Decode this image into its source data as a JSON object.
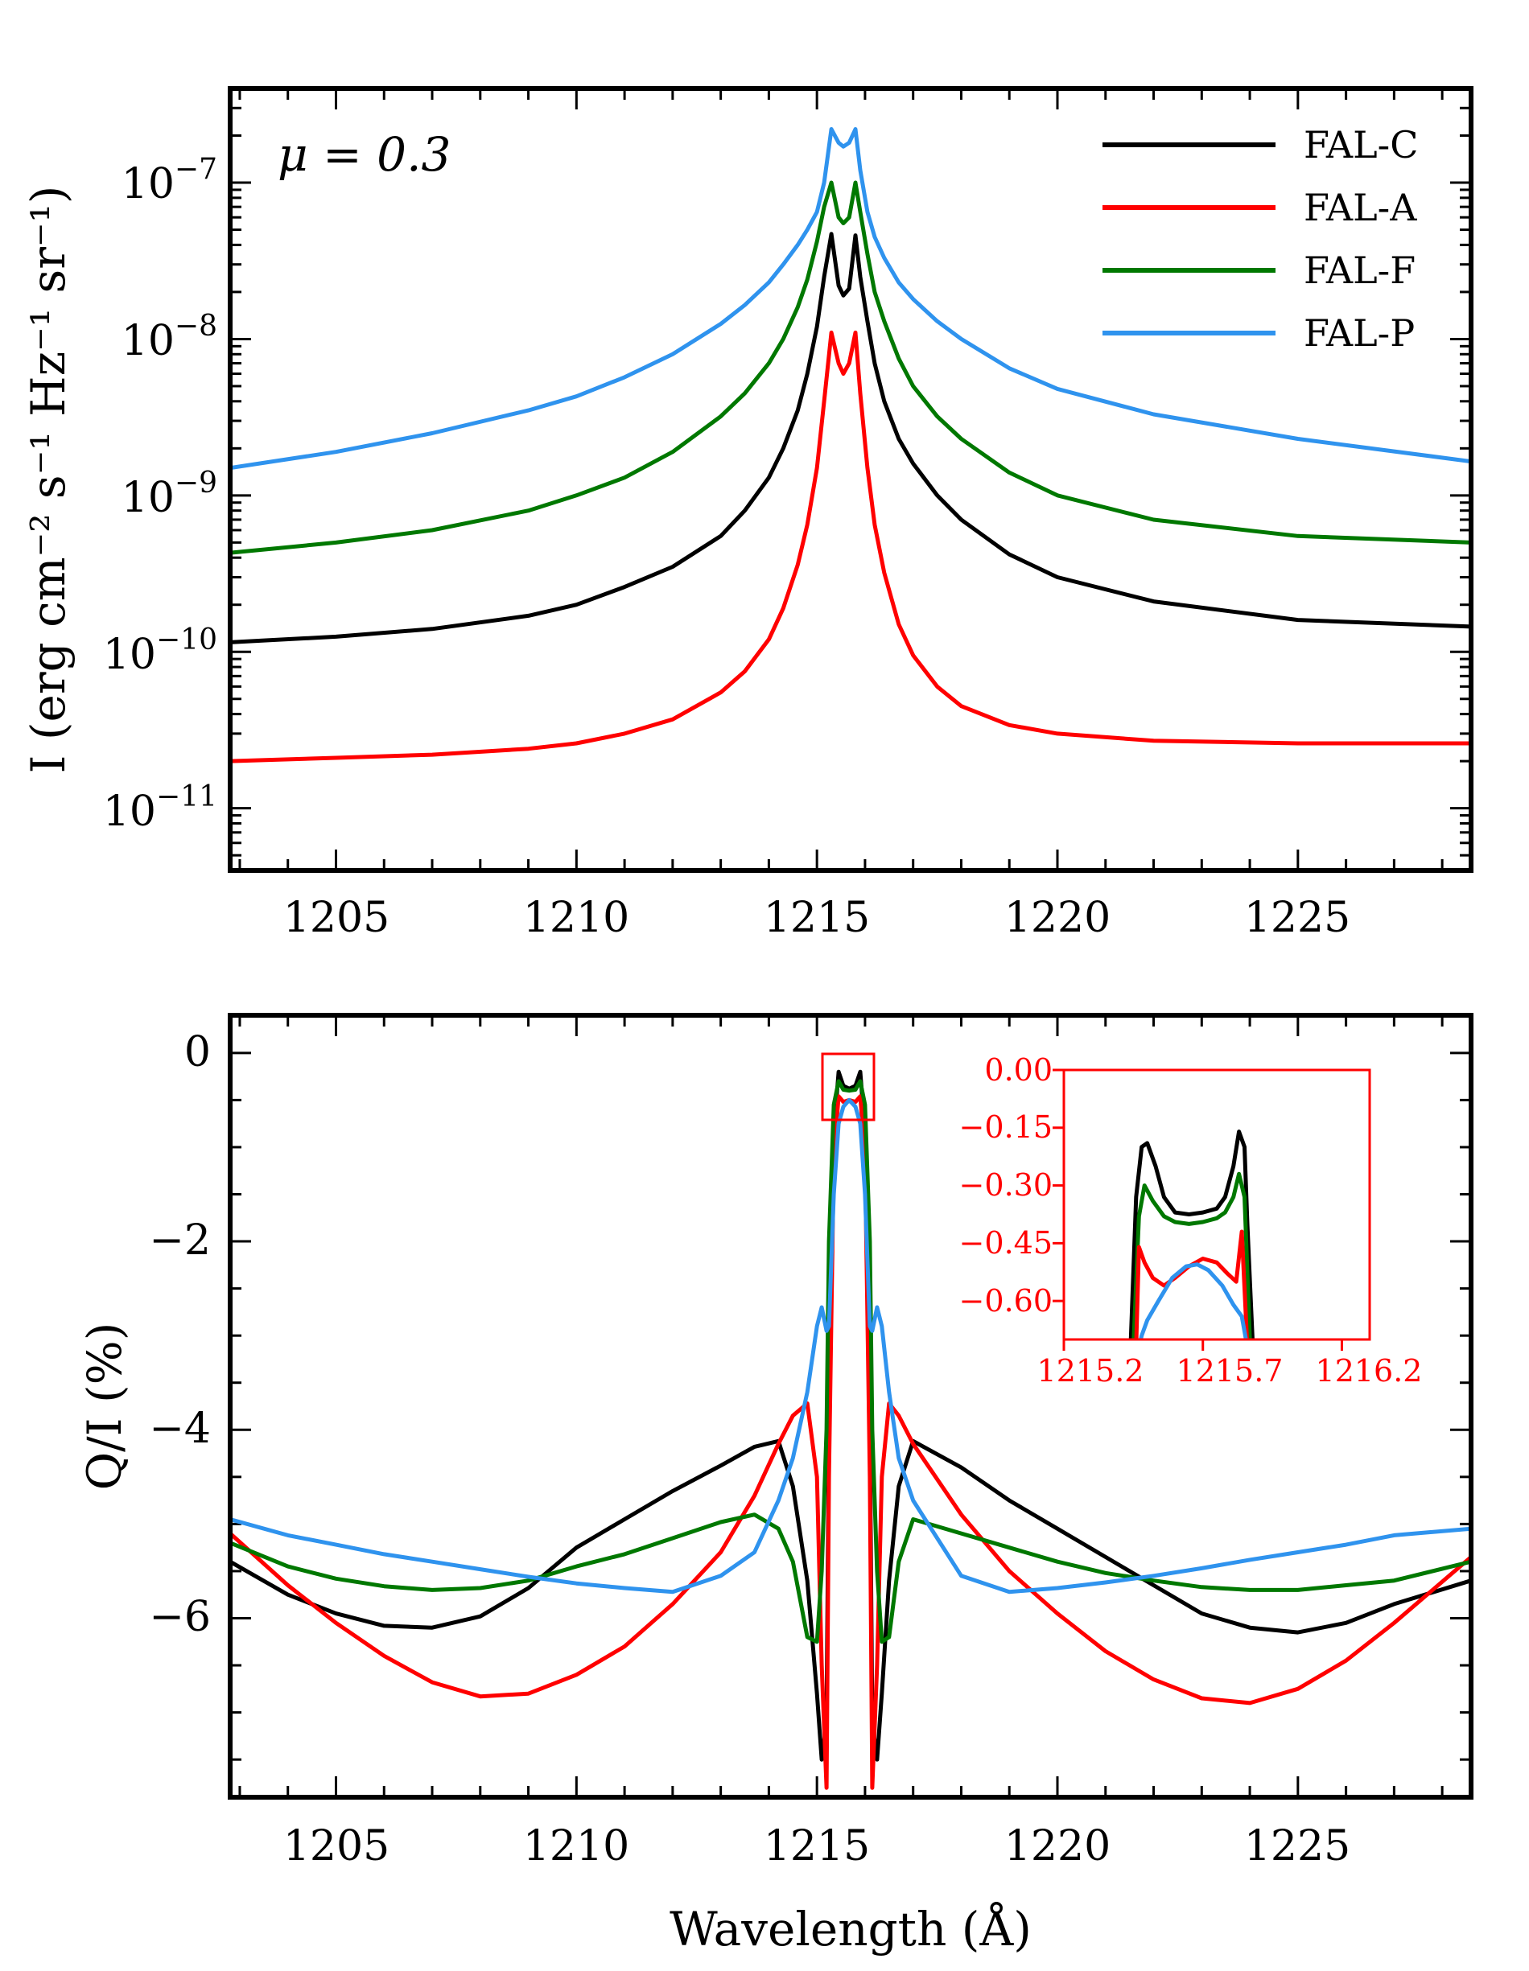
{
  "chart_data": [
    {
      "type": "line",
      "id": "intensity",
      "yscale": "log",
      "annotation": "μ = 0.3",
      "ylabel": "I (erg cm⁻² s⁻¹ Hz⁻¹ sr⁻¹)",
      "xlabel": "",
      "xlim": [
        1202.8,
        1228.6
      ],
      "ylim": [
        4e-12,
        4e-07
      ],
      "xticks": [
        1205,
        1210,
        1215,
        1220,
        1225
      ],
      "xtick_labels": [
        "1205",
        "1210",
        "1215",
        "1220",
        "1225"
      ],
      "ytick_labels": [
        {
          "base": "10",
          "exp": "−7"
        },
        {
          "base": "10",
          "exp": "−8"
        },
        {
          "base": "10",
          "exp": "−9"
        },
        {
          "base": "10",
          "exp": "−10"
        },
        {
          "base": "10",
          "exp": "−11"
        }
      ],
      "legend": {
        "position": "top-right",
        "entries": [
          "FAL-C",
          "FAL-A",
          "FAL-F",
          "FAL-P"
        ]
      },
      "series": [
        {
          "name": "FAL-C",
          "color": "#000000",
          "x": [
            1202.8,
            1205,
            1207,
            1209,
            1210,
            1211,
            1212,
            1213,
            1213.5,
            1214,
            1214.3,
            1214.6,
            1214.8,
            1215.0,
            1215.15,
            1215.3,
            1215.45,
            1215.55,
            1215.67,
            1215.8,
            1215.9,
            1216.05,
            1216.2,
            1216.4,
            1216.7,
            1217,
            1217.5,
            1218,
            1219,
            1220,
            1222,
            1225,
            1228.6
          ],
          "y": [
            1.15e-10,
            1.25e-10,
            1.4e-10,
            1.7e-10,
            2e-10,
            2.6e-10,
            3.5e-10,
            5.5e-10,
            8e-10,
            1.3e-09,
            2e-09,
            3.5e-09,
            6e-09,
            1.2e-08,
            2.5e-08,
            4.7e-08,
            2.2e-08,
            1.9e-08,
            2.1e-08,
            4.6e-08,
            2.5e-08,
            1.3e-08,
            7e-09,
            4e-09,
            2.3e-09,
            1.6e-09,
            1e-09,
            7e-10,
            4.2e-10,
            3e-10,
            2.1e-10,
            1.6e-10,
            1.45e-10
          ]
        },
        {
          "name": "FAL-A",
          "color": "#ff0000",
          "x": [
            1202.8,
            1205,
            1207,
            1209,
            1210,
            1211,
            1212,
            1213,
            1213.5,
            1214,
            1214.3,
            1214.6,
            1214.8,
            1215.0,
            1215.15,
            1215.3,
            1215.45,
            1215.55,
            1215.67,
            1215.8,
            1215.9,
            1216.05,
            1216.2,
            1216.4,
            1216.7,
            1217,
            1217.5,
            1218,
            1219,
            1220,
            1222,
            1225,
            1228.6
          ],
          "y": [
            2e-11,
            2.1e-11,
            2.2e-11,
            2.4e-11,
            2.6e-11,
            3e-11,
            3.7e-11,
            5.5e-11,
            7.5e-11,
            1.2e-10,
            1.9e-10,
            3.6e-10,
            6.5e-10,
            1.5e-09,
            4e-09,
            1.1e-08,
            7e-09,
            6e-09,
            7e-09,
            1.1e-08,
            4.5e-09,
            1.5e-09,
            6.5e-10,
            3.2e-10,
            1.5e-10,
            9.5e-11,
            6e-11,
            4.5e-11,
            3.4e-11,
            3e-11,
            2.7e-11,
            2.6e-11,
            2.6e-11
          ]
        },
        {
          "name": "FAL-F",
          "color": "#007800",
          "x": [
            1202.8,
            1205,
            1207,
            1209,
            1210,
            1211,
            1212,
            1213,
            1213.5,
            1214,
            1214.3,
            1214.6,
            1214.8,
            1215.0,
            1215.15,
            1215.3,
            1215.45,
            1215.55,
            1215.67,
            1215.8,
            1215.9,
            1216.05,
            1216.2,
            1216.4,
            1216.7,
            1217,
            1217.5,
            1218,
            1219,
            1220,
            1222,
            1225,
            1228.6
          ],
          "y": [
            4.3e-10,
            5e-10,
            6e-10,
            8e-10,
            1e-09,
            1.3e-09,
            1.9e-09,
            3.2e-09,
            4.5e-09,
            7e-09,
            1e-08,
            1.6e-08,
            2.4e-08,
            4.2e-08,
            7e-08,
            1e-07,
            6e-08,
            5.5e-08,
            6e-08,
            1e-07,
            6.5e-08,
            3.5e-08,
            2e-08,
            1.3e-08,
            7.5e-09,
            5e-09,
            3.2e-09,
            2.3e-09,
            1.4e-09,
            1e-09,
            7e-10,
            5.5e-10,
            5e-10
          ]
        },
        {
          "name": "FAL-P",
          "color": "#2f93ee",
          "x": [
            1202.8,
            1205,
            1207,
            1209,
            1210,
            1211,
            1212,
            1213,
            1213.5,
            1214,
            1214.3,
            1214.6,
            1214.8,
            1215.0,
            1215.15,
            1215.3,
            1215.45,
            1215.55,
            1215.67,
            1215.8,
            1215.9,
            1216.05,
            1216.2,
            1216.4,
            1216.7,
            1217,
            1217.5,
            1218,
            1219,
            1220,
            1222,
            1225,
            1228.6
          ],
          "y": [
            1.5e-09,
            1.9e-09,
            2.5e-09,
            3.5e-09,
            4.3e-09,
            5.7e-09,
            8e-09,
            1.25e-08,
            1.65e-08,
            2.3e-08,
            3e-08,
            4e-08,
            5e-08,
            6.5e-08,
            1e-07,
            2.2e-07,
            1.8e-07,
            1.7e-07,
            1.8e-07,
            2.2e-07,
            1.2e-07,
            6.5e-08,
            4.5e-08,
            3.3e-08,
            2.3e-08,
            1.8e-08,
            1.3e-08,
            1e-08,
            6.5e-09,
            4.8e-09,
            3.3e-09,
            2.3e-09,
            1.65e-09
          ]
        }
      ]
    },
    {
      "type": "line",
      "id": "polarization",
      "yscale": "linear",
      "ylabel": "Q/I (%)",
      "xlabel": "Wavelength (Å)",
      "xlim": [
        1202.8,
        1228.6
      ],
      "ylim": [
        -7.9,
        0.4
      ],
      "xticks": [
        1205,
        1210,
        1215,
        1220,
        1225
      ],
      "xtick_labels": [
        "1205",
        "1210",
        "1215",
        "1220",
        "1225"
      ],
      "yticks": [
        0,
        -2,
        -4,
        -6
      ],
      "ytick_labels": [
        "0",
        "−2",
        "−4",
        "−6"
      ],
      "series": [
        {
          "name": "FAL-C",
          "color": "#000000",
          "x": [
            1202.8,
            1204,
            1205,
            1206,
            1207,
            1208,
            1209,
            1210,
            1211,
            1212,
            1213,
            1213.7,
            1214.2,
            1214.5,
            1214.8,
            1215.0,
            1215.1,
            1215.2,
            1215.25,
            1215.35,
            1215.45,
            1215.55,
            1215.67,
            1215.8,
            1215.9,
            1216.0,
            1216.1,
            1216.15,
            1216.25,
            1216.35,
            1216.5,
            1216.7,
            1217,
            1218,
            1219,
            1220,
            1221,
            1222,
            1223,
            1224,
            1225,
            1226,
            1227,
            1228.6
          ],
          "y": [
            -5.4,
            -5.75,
            -5.95,
            -6.08,
            -6.1,
            -5.98,
            -5.68,
            -5.25,
            -4.95,
            -4.65,
            -4.38,
            -4.18,
            -4.12,
            -4.6,
            -5.6,
            -6.8,
            -7.5,
            -7.1,
            -4.0,
            -0.85,
            -0.2,
            -0.35,
            -0.38,
            -0.35,
            -0.2,
            -0.85,
            -4.0,
            -7.1,
            -7.5,
            -6.8,
            -5.6,
            -4.6,
            -4.12,
            -4.4,
            -4.75,
            -5.05,
            -5.35,
            -5.65,
            -5.95,
            -6.1,
            -6.15,
            -6.05,
            -5.85,
            -5.6
          ]
        },
        {
          "name": "FAL-A",
          "color": "#ff0000",
          "x": [
            1202.8,
            1204,
            1205,
            1206,
            1207,
            1208,
            1209,
            1210,
            1211,
            1212,
            1213,
            1213.7,
            1214.2,
            1214.5,
            1214.8,
            1215.0,
            1215.1,
            1215.2,
            1215.25,
            1215.35,
            1215.45,
            1215.55,
            1215.67,
            1215.8,
            1215.9,
            1216.0,
            1216.1,
            1216.15,
            1216.25,
            1216.35,
            1216.5,
            1216.7,
            1217,
            1218,
            1219,
            1220,
            1221,
            1222,
            1223,
            1224,
            1225,
            1226,
            1227,
            1228.6
          ],
          "y": [
            -5.1,
            -5.65,
            -6.05,
            -6.4,
            -6.68,
            -6.83,
            -6.8,
            -6.6,
            -6.3,
            -5.85,
            -5.3,
            -4.7,
            -4.15,
            -3.85,
            -3.72,
            -4.5,
            -6.5,
            -7.8,
            -4.5,
            -1.1,
            -0.46,
            -0.52,
            -0.5,
            -0.52,
            -0.46,
            -1.1,
            -4.5,
            -7.8,
            -6.5,
            -4.5,
            -3.72,
            -3.85,
            -4.15,
            -4.9,
            -5.5,
            -5.95,
            -6.35,
            -6.65,
            -6.85,
            -6.9,
            -6.75,
            -6.45,
            -6.05,
            -5.35
          ]
        },
        {
          "name": "FAL-F",
          "color": "#007800",
          "x": [
            1202.8,
            1204,
            1205,
            1206,
            1207,
            1208,
            1209,
            1210,
            1211,
            1212,
            1213,
            1213.7,
            1214.2,
            1214.5,
            1214.8,
            1215.0,
            1215.1,
            1215.2,
            1215.25,
            1215.35,
            1215.45,
            1215.55,
            1215.67,
            1215.8,
            1215.9,
            1216.0,
            1216.1,
            1216.15,
            1216.25,
            1216.35,
            1216.5,
            1216.7,
            1217,
            1218,
            1219,
            1220,
            1221,
            1222,
            1223,
            1224,
            1225,
            1226,
            1227,
            1228.6
          ],
          "y": [
            -5.2,
            -5.45,
            -5.58,
            -5.66,
            -5.7,
            -5.68,
            -5.6,
            -5.45,
            -5.32,
            -5.15,
            -4.98,
            -4.9,
            -5.05,
            -5.4,
            -6.2,
            -6.25,
            -5.5,
            -4.0,
            -2.0,
            -0.55,
            -0.3,
            -0.39,
            -0.4,
            -0.39,
            -0.3,
            -0.55,
            -2.0,
            -4.0,
            -5.5,
            -6.25,
            -6.2,
            -5.4,
            -4.95,
            -5.1,
            -5.25,
            -5.4,
            -5.52,
            -5.6,
            -5.67,
            -5.7,
            -5.7,
            -5.65,
            -5.6,
            -5.4
          ]
        },
        {
          "name": "FAL-P",
          "color": "#2f93ee",
          "x": [
            1202.8,
            1204,
            1205,
            1206,
            1207,
            1208,
            1209,
            1210,
            1211,
            1212,
            1213,
            1213.7,
            1214.2,
            1214.5,
            1214.8,
            1215.0,
            1215.1,
            1215.2,
            1215.25,
            1215.35,
            1215.45,
            1215.55,
            1215.67,
            1215.8,
            1215.9,
            1216.0,
            1216.1,
            1216.15,
            1216.25,
            1216.35,
            1216.5,
            1216.7,
            1217,
            1218,
            1219,
            1220,
            1221,
            1222,
            1223,
            1224,
            1225,
            1226,
            1227,
            1228.6
          ],
          "y": [
            -4.95,
            -5.12,
            -5.22,
            -5.32,
            -5.4,
            -5.48,
            -5.56,
            -5.63,
            -5.68,
            -5.72,
            -5.55,
            -5.3,
            -4.75,
            -4.3,
            -3.6,
            -2.9,
            -2.7,
            -2.95,
            -2.9,
            -1.5,
            -0.75,
            -0.57,
            -0.5,
            -0.57,
            -0.75,
            -1.5,
            -2.9,
            -2.95,
            -2.7,
            -2.9,
            -3.6,
            -4.3,
            -4.75,
            -5.55,
            -5.72,
            -5.68,
            -5.62,
            -5.55,
            -5.47,
            -5.38,
            -5.3,
            -5.22,
            -5.12,
            -5.05
          ]
        }
      ]
    },
    {
      "type": "line",
      "id": "inset",
      "yscale": "linear",
      "xlim": [
        1215.2,
        1216.3
      ],
      "ylim": [
        -0.7,
        0.0
      ],
      "xticks": [
        1215.2,
        1215.7,
        1216.2
      ],
      "xtick_labels": [
        "1215.2",
        "1215.7",
        "1216.2"
      ],
      "yticks": [
        0.0,
        -0.15,
        -0.3,
        -0.45,
        -0.6
      ],
      "ytick_labels": [
        "0.00",
        "−0.15",
        "−0.30",
        "−0.45",
        "−0.60"
      ],
      "series": [
        {
          "name": "FAL-C",
          "color": "#000000",
          "x": [
            1215.44,
            1215.46,
            1215.48,
            1215.5,
            1215.53,
            1215.56,
            1215.6,
            1215.65,
            1215.7,
            1215.75,
            1215.78,
            1215.81,
            1215.83,
            1215.85,
            1215.86,
            1215.88
          ],
          "y": [
            -0.72,
            -0.33,
            -0.2,
            -0.19,
            -0.25,
            -0.33,
            -0.37,
            -0.375,
            -0.37,
            -0.36,
            -0.33,
            -0.25,
            -0.16,
            -0.2,
            -0.4,
            -0.72
          ]
        },
        {
          "name": "FAL-F",
          "color": "#007800",
          "x": [
            1215.45,
            1215.47,
            1215.49,
            1215.52,
            1215.56,
            1215.6,
            1215.65,
            1215.7,
            1215.75,
            1215.78,
            1215.81,
            1215.83,
            1215.85,
            1215.87
          ],
          "y": [
            -0.72,
            -0.38,
            -0.3,
            -0.34,
            -0.38,
            -0.395,
            -0.4,
            -0.395,
            -0.385,
            -0.37,
            -0.33,
            -0.27,
            -0.33,
            -0.72
          ]
        },
        {
          "name": "FAL-A",
          "color": "#ff0000",
          "x": [
            1215.46,
            1215.47,
            1215.49,
            1215.52,
            1215.56,
            1215.6,
            1215.65,
            1215.7,
            1215.75,
            1215.79,
            1215.82,
            1215.84,
            1215.86
          ],
          "y": [
            -0.72,
            -0.46,
            -0.5,
            -0.54,
            -0.56,
            -0.54,
            -0.51,
            -0.49,
            -0.5,
            -0.53,
            -0.55,
            -0.42,
            -0.72
          ]
        },
        {
          "name": "FAL-P",
          "color": "#2f93ee",
          "x": [
            1215.47,
            1215.48,
            1215.5,
            1215.54,
            1215.59,
            1215.64,
            1215.68,
            1215.72,
            1215.77,
            1215.81,
            1215.84,
            1215.86
          ],
          "y": [
            -0.72,
            -0.69,
            -0.65,
            -0.6,
            -0.54,
            -0.51,
            -0.505,
            -0.52,
            -0.56,
            -0.61,
            -0.64,
            -0.72
          ]
        }
      ]
    }
  ]
}
